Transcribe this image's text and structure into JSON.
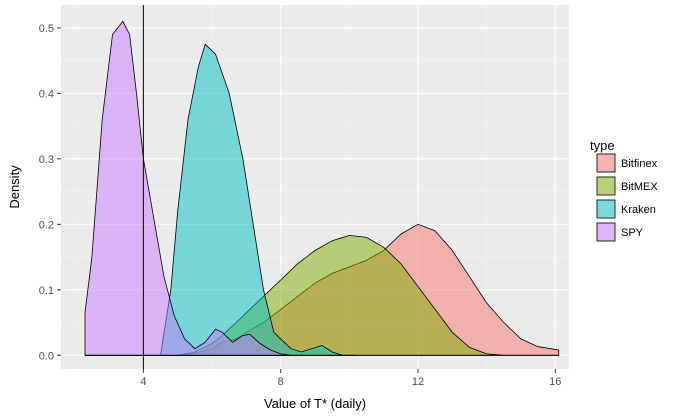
{
  "chart_data": {
    "type": "area",
    "xlabel": "Value of T* (daily)",
    "ylabel": "Density",
    "xlim": [
      1.6,
      16.4
    ],
    "ylim": [
      -0.021,
      0.535
    ],
    "x_ticks": [
      4,
      8,
      12,
      16
    ],
    "y_ticks": [
      0.0,
      0.1,
      0.2,
      0.3,
      0.4,
      0.5
    ],
    "x_tick_labels": [
      "4",
      "8",
      "12",
      "16"
    ],
    "y_tick_labels": [
      "0.0",
      "0.1",
      "0.2",
      "0.3",
      "0.4",
      "0.5"
    ],
    "grid": true,
    "vline": {
      "x": 4.0
    },
    "legend": {
      "title": "type",
      "position": "right"
    },
    "series": [
      {
        "name": "Bitfinex",
        "color": "#F8766D",
        "x": [
          2.3,
          5.0,
          5.5,
          6.0,
          6.3,
          6.7,
          7.0,
          7.5,
          8.0,
          8.5,
          9.0,
          9.5,
          10.0,
          10.5,
          11.0,
          11.5,
          12.0,
          12.5,
          13.0,
          13.5,
          14.0,
          14.5,
          15.0,
          15.5,
          16.1
        ],
        "y": [
          0.0,
          0.0,
          0.003,
          0.01,
          0.02,
          0.025,
          0.035,
          0.05,
          0.07,
          0.09,
          0.11,
          0.125,
          0.135,
          0.145,
          0.16,
          0.185,
          0.2,
          0.19,
          0.16,
          0.12,
          0.08,
          0.05,
          0.025,
          0.013,
          0.008
        ]
      },
      {
        "name": "BitMEX",
        "color": "#7CAE00",
        "x": [
          2.3,
          5.0,
          5.5,
          6.0,
          6.3,
          6.7,
          7.0,
          7.5,
          8.0,
          8.5,
          9.0,
          9.5,
          10.0,
          10.5,
          11.0,
          11.5,
          12.0,
          12.5,
          13.0,
          13.5,
          14.0,
          14.5,
          15.0,
          15.5,
          16.1
        ],
        "y": [
          0.0,
          0.0,
          0.005,
          0.018,
          0.03,
          0.05,
          0.065,
          0.09,
          0.115,
          0.14,
          0.16,
          0.175,
          0.183,
          0.18,
          0.165,
          0.14,
          0.105,
          0.07,
          0.035,
          0.012,
          0.002,
          0.0,
          0.0,
          0.0,
          0.0
        ]
      },
      {
        "name": "Kraken",
        "color": "#00BFC4",
        "x": [
          2.3,
          4.5,
          4.8,
          5.0,
          5.3,
          5.6,
          5.8,
          6.1,
          6.5,
          6.9,
          7.2,
          7.5,
          7.8,
          8.0,
          8.3,
          8.6,
          8.9,
          9.2,
          9.5,
          9.8,
          10.2
        ],
        "y": [
          0.0,
          0.0,
          0.1,
          0.22,
          0.36,
          0.44,
          0.475,
          0.46,
          0.4,
          0.3,
          0.2,
          0.1,
          0.035,
          0.025,
          0.01,
          0.005,
          0.01,
          0.015,
          0.005,
          0.0,
          0.0
        ]
      },
      {
        "name": "SPY",
        "color": "#C77CFF",
        "x": [
          2.3,
          2.5,
          2.8,
          3.1,
          3.4,
          3.6,
          3.8,
          4.0,
          4.3,
          4.6,
          4.9,
          5.2,
          5.5,
          5.8,
          6.1,
          6.3,
          6.6,
          6.9,
          7.1,
          7.4,
          7.7,
          8.0,
          8.3
        ],
        "y": [
          0.065,
          0.15,
          0.36,
          0.49,
          0.51,
          0.49,
          0.4,
          0.3,
          0.21,
          0.12,
          0.06,
          0.025,
          0.01,
          0.02,
          0.04,
          0.035,
          0.02,
          0.03,
          0.032,
          0.018,
          0.008,
          0.002,
          0.0
        ]
      }
    ]
  }
}
